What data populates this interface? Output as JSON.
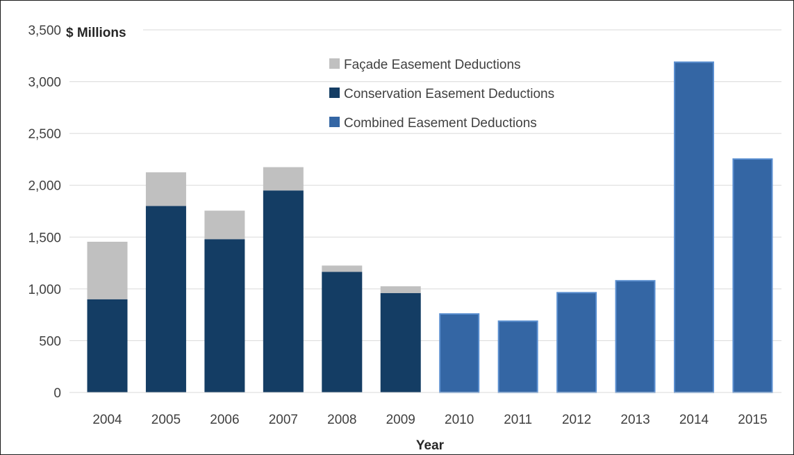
{
  "chart_data": {
    "type": "bar",
    "stacked": true,
    "title": "",
    "ylabel": "$ Millions",
    "xlabel": "Year",
    "ylim": [
      0,
      3500
    ],
    "yticks": [
      0,
      500,
      1000,
      1500,
      2000,
      2500,
      3000,
      3500
    ],
    "ytick_labels": [
      "0",
      "500",
      "1,000",
      "1,500",
      "2,000",
      "2,500",
      "3,000",
      "3,500"
    ],
    "grid": true,
    "legend_position": "top-center",
    "categories": [
      "2004",
      "2005",
      "2006",
      "2007",
      "2008",
      "2009",
      "2010",
      "2011",
      "2012",
      "2013",
      "2014",
      "2015"
    ],
    "series": [
      {
        "name": "Conservation Easement Deductions",
        "color": "#143d64",
        "values": [
          900,
          1800,
          1480,
          1950,
          1165,
          960,
          null,
          null,
          null,
          null,
          null,
          null
        ]
      },
      {
        "name": "Façade Easement Deductions",
        "color": "#c0c0c0",
        "values": [
          555,
          325,
          275,
          225,
          60,
          65,
          null,
          null,
          null,
          null,
          null,
          null
        ]
      },
      {
        "name": "Combined Easement Deductions",
        "color": "#3466a4",
        "values": [
          null,
          null,
          null,
          null,
          null,
          null,
          765,
          695,
          970,
          1085,
          3195,
          2260
        ]
      }
    ],
    "legend_order": [
      "Façade Easement Deductions",
      "Conservation Easement Deductions",
      "Combined Easement Deductions"
    ]
  }
}
